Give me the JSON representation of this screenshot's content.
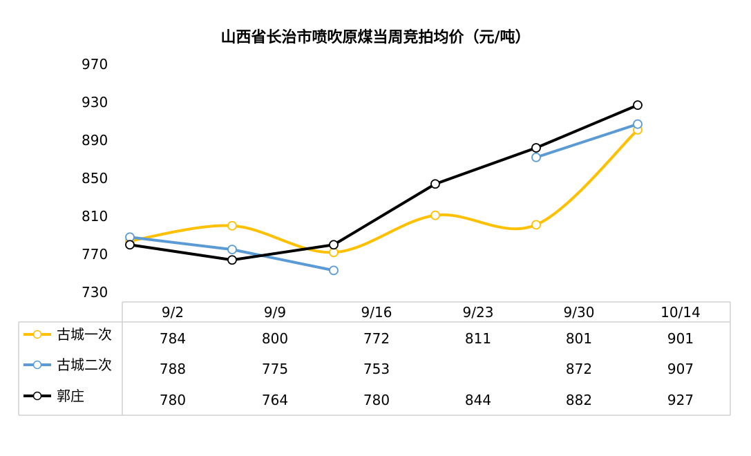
{
  "chart_data": {
    "type": "line",
    "title": "山西省长治市喷吹原煤当周竞拍均价（元/吨）",
    "categories": [
      "9/2",
      "9/9",
      "9/16",
      "9/23",
      "9/30",
      "10/14"
    ],
    "ylim": [
      730,
      970
    ],
    "yticks": [
      "970",
      "930",
      "890",
      "850",
      "810",
      "770",
      "730"
    ],
    "legend_position": "data-table-left",
    "series": [
      {
        "name": "古城一次",
        "color": "#FFC000",
        "smooth": true,
        "values": [
          784,
          800,
          772,
          811,
          801,
          901
        ]
      },
      {
        "name": "古城二次",
        "color": "#5B9BD5",
        "smooth": false,
        "values": [
          788,
          775,
          753,
          null,
          872,
          907
        ]
      },
      {
        "name": "郭庄",
        "color": "#000000",
        "smooth": false,
        "values": [
          780,
          764,
          780,
          844,
          882,
          927
        ]
      }
    ],
    "table": {
      "rows": [
        [
          "784",
          "800",
          "772",
          "811",
          "801",
          "901"
        ],
        [
          "788",
          "775",
          "753",
          "",
          "872",
          "907"
        ],
        [
          "780",
          "764",
          "780",
          "844",
          "882",
          "927"
        ]
      ]
    }
  }
}
